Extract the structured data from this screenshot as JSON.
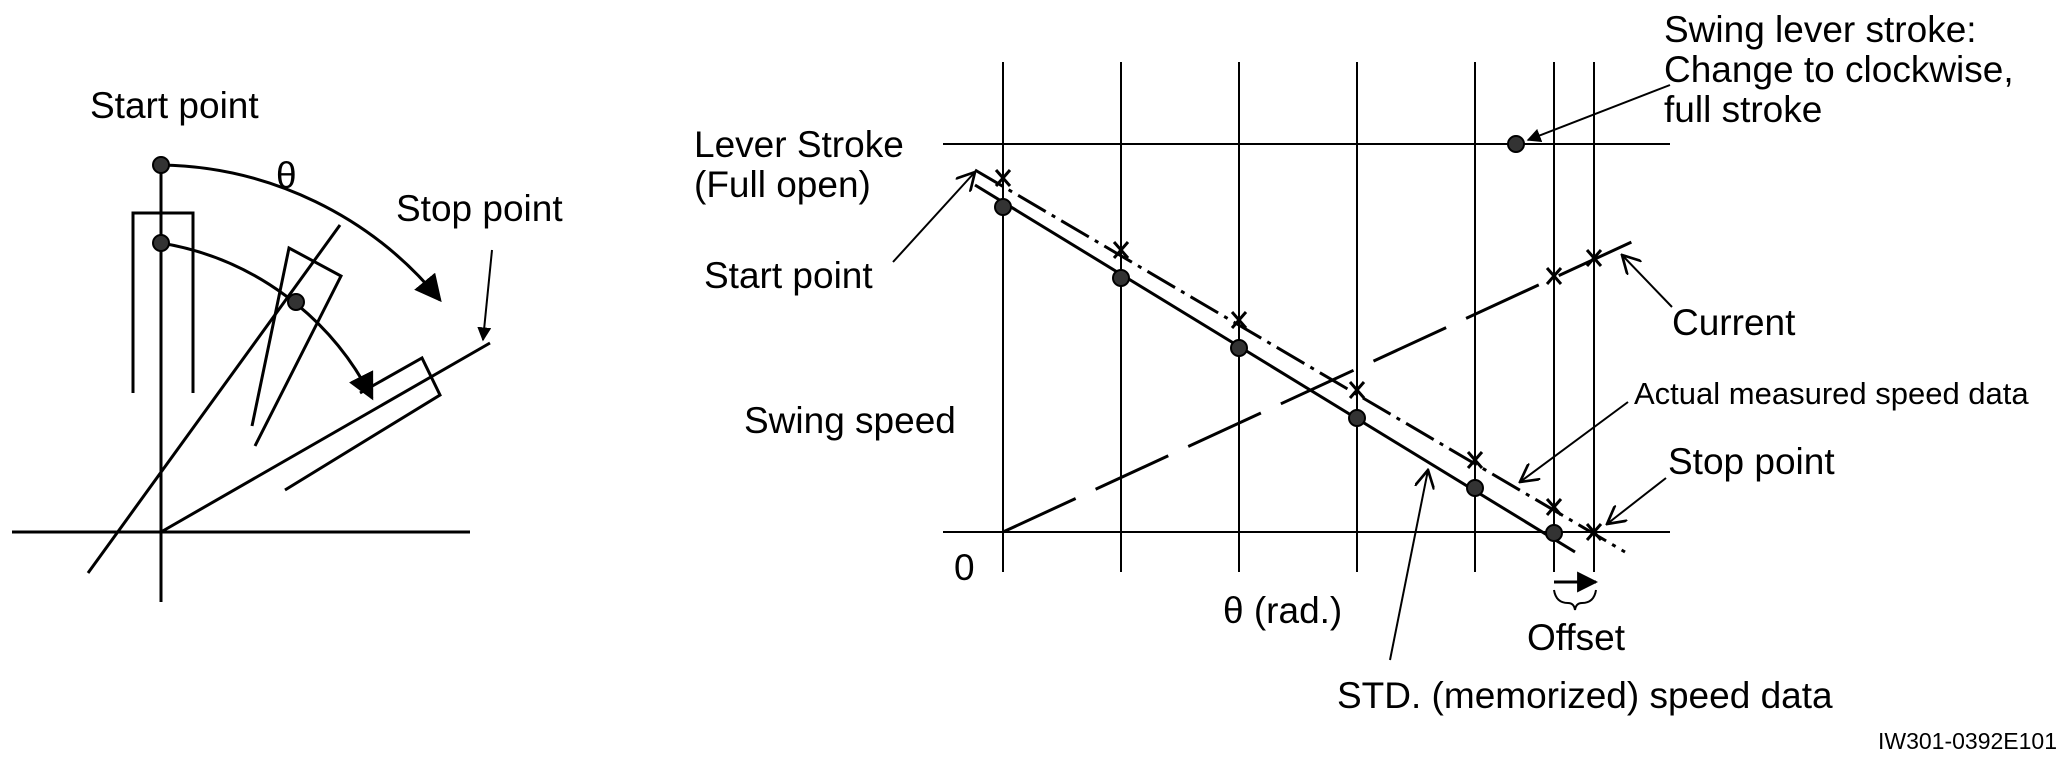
{
  "left_diagram": {
    "start_point": "Start point",
    "theta": "θ",
    "stop_point": "Stop point"
  },
  "right_graph": {
    "lever_stroke_line1": "Lever Stroke",
    "lever_stroke_line2": "(Full open)",
    "start_point": "Start point",
    "y_axis_label": "Swing speed",
    "origin": "0",
    "x_axis_label": "θ (rad.)",
    "swing_lever_line1": "Swing lever stroke:",
    "swing_lever_line2": "Change to clockwise,",
    "swing_lever_line3": "full stroke",
    "current": "Current",
    "actual_measured": "Actual measured speed data",
    "stop_point": "Stop point",
    "offset": "Offset",
    "std_memorized": "STD. (memorized) speed data"
  },
  "figure_code": "IW301-0392E101"
}
